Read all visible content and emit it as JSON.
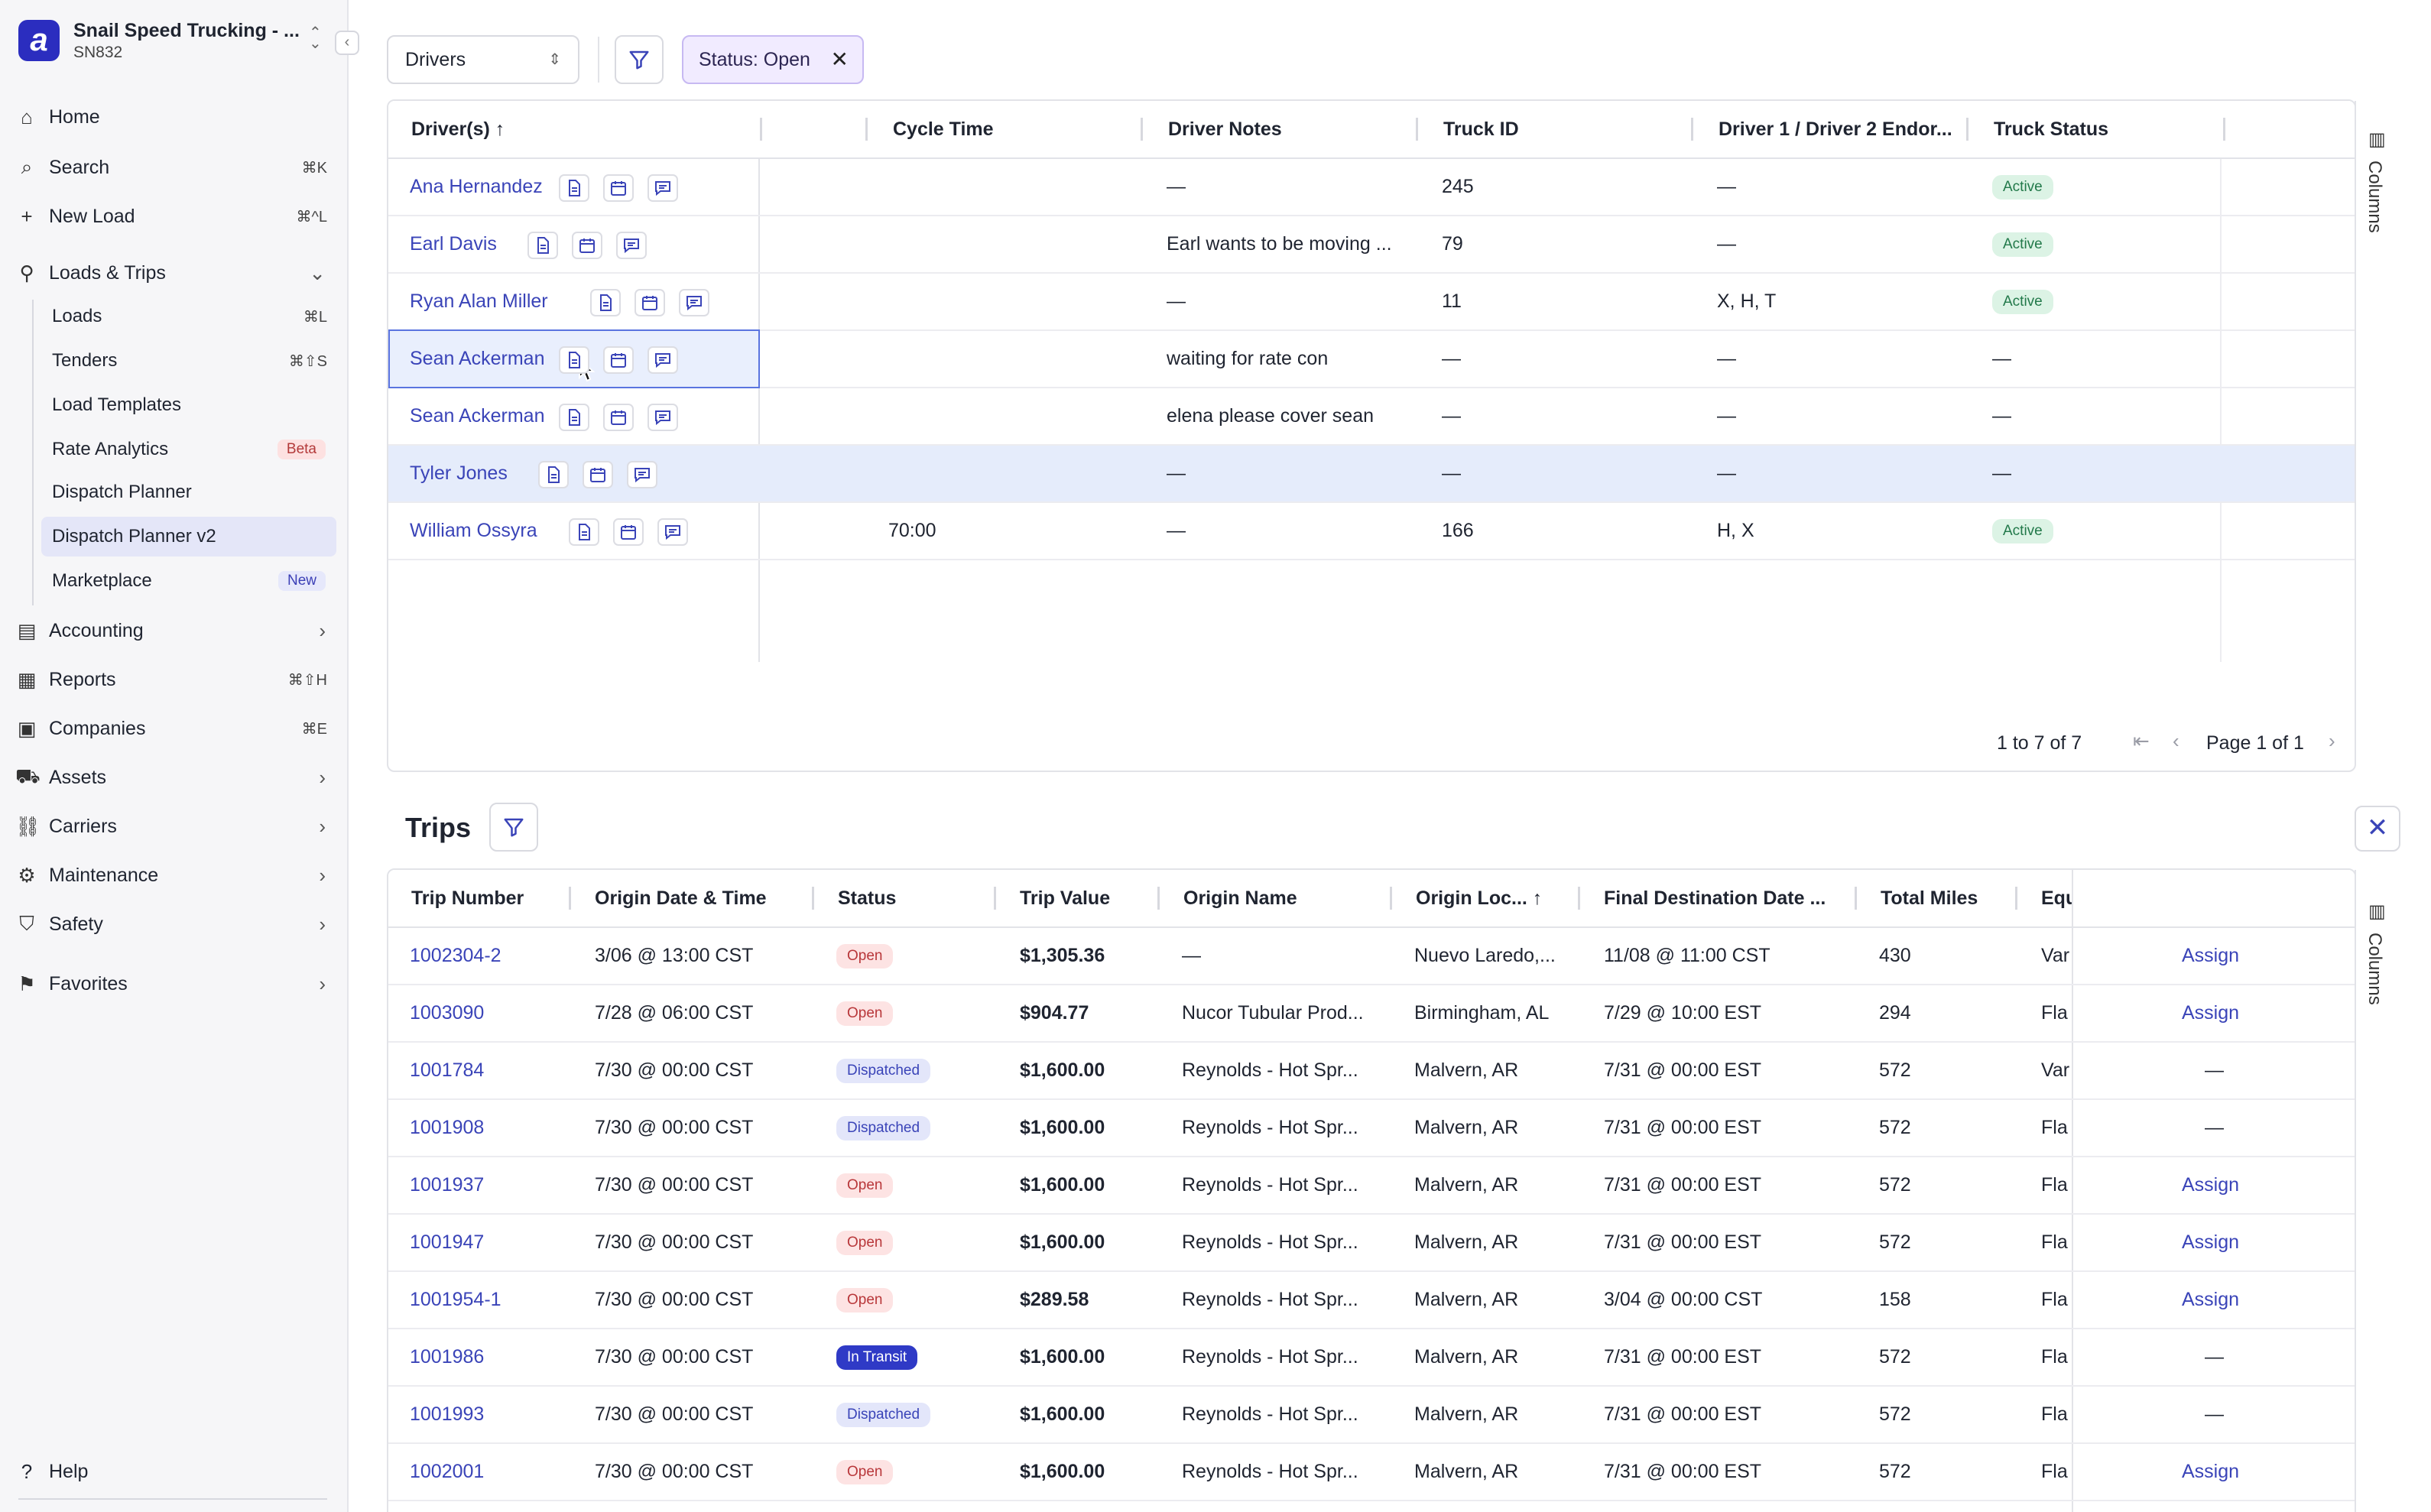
{
  "sidebar": {
    "org_name": "Snail Speed Trucking - ...",
    "org_code": "SN832",
    "logo_letter": "a",
    "items": [
      {
        "label": "Home",
        "icon": "home-icon",
        "shortcut": ""
      },
      {
        "label": "Search",
        "icon": "search-icon",
        "shortcut": "⌘K"
      },
      {
        "label": "New Load",
        "icon": "plus-icon",
        "shortcut": "⌘^L"
      },
      {
        "label": "Loads & Trips",
        "icon": "route-icon",
        "shortcut": ""
      },
      {
        "label": "Accounting",
        "icon": "accounting-icon",
        "shortcut": ""
      },
      {
        "label": "Reports",
        "icon": "reports-icon",
        "shortcut": "⌘⇧H"
      },
      {
        "label": "Companies",
        "icon": "companies-icon",
        "shortcut": "⌘E"
      },
      {
        "label": "Assets",
        "icon": "assets-icon",
        "shortcut": ""
      },
      {
        "label": "Carriers",
        "icon": "carriers-icon",
        "shortcut": ""
      },
      {
        "label": "Maintenance",
        "icon": "maintenance-icon",
        "shortcut": ""
      },
      {
        "label": "Safety",
        "icon": "shield-icon",
        "shortcut": ""
      },
      {
        "label": "Favorites",
        "icon": "bookmark-icon",
        "shortcut": ""
      }
    ],
    "sub_items": [
      {
        "label": "Loads",
        "shortcut": "⌘L",
        "badge": ""
      },
      {
        "label": "Tenders",
        "shortcut": "⌘⇧S",
        "badge": ""
      },
      {
        "label": "Load Templates",
        "shortcut": "",
        "badge": ""
      },
      {
        "label": "Rate Analytics",
        "shortcut": "",
        "badge": "Beta"
      },
      {
        "label": "Dispatch Planner",
        "shortcut": "",
        "badge": ""
      },
      {
        "label": "Dispatch Planner v2",
        "shortcut": "",
        "badge": ""
      },
      {
        "label": "Marketplace",
        "shortcut": "",
        "badge": "New"
      }
    ],
    "help_label": "Help"
  },
  "toolbar": {
    "view_select": "Drivers",
    "status_chip": "Status: Open"
  },
  "drivers": {
    "columns": [
      "Driver(s)",
      "Cycle Time",
      "Driver Notes",
      "Truck ID",
      "Driver 1 / Driver 2 Endor...",
      "Truck Status"
    ],
    "rows": [
      {
        "name": "Ana Hernandez",
        "cycle": "",
        "notes": "—",
        "truck": "245",
        "endorse": "—",
        "status": "Active"
      },
      {
        "name": "Earl Davis",
        "cycle": "",
        "notes": "Earl wants to be moving ...",
        "truck": "79",
        "endorse": "—",
        "status": "Active"
      },
      {
        "name": "Ryan Alan Miller",
        "cycle": "",
        "notes": "—",
        "truck": "11",
        "endorse": "X, H, T",
        "status": "Active"
      },
      {
        "name": "Sean Ackerman",
        "cycle": "",
        "notes": "waiting for rate con",
        "truck": "—",
        "endorse": "—",
        "status": "—"
      },
      {
        "name": "Sean Ackerman",
        "cycle": "",
        "notes": "elena please cover sean",
        "truck": "—",
        "endorse": "—",
        "status": "—"
      },
      {
        "name": "Tyler Jones",
        "cycle": "",
        "notes": "—",
        "truck": "—",
        "endorse": "—",
        "status": "—"
      },
      {
        "name": "William Ossyra",
        "cycle": "70:00",
        "notes": "—",
        "truck": "166",
        "endorse": "H, X",
        "status": "Active"
      }
    ],
    "range": "1 to 7 of 7",
    "page": "Page 1 of 1",
    "rail_label": "Columns"
  },
  "trips": {
    "title": "Trips",
    "columns": [
      "Trip Number",
      "Origin Date & Time",
      "Status",
      "Trip Value",
      "Origin Name",
      "Origin Loc...",
      "Final Destination Date ...",
      "Total Miles",
      "Equ"
    ],
    "rows": [
      {
        "num": "1002304-2",
        "origin_dt": "3/06 @ 13:00 CST",
        "status": "Open",
        "value": "$1,305.36",
        "origin_name": "—",
        "origin_loc": "Nuevo Laredo,...",
        "final": "11/08 @ 11:00 CST",
        "miles": "430",
        "equ": "Var",
        "action": "Assign"
      },
      {
        "num": "1003090",
        "origin_dt": "7/28 @ 06:00 CST",
        "status": "Open",
        "value": "$904.77",
        "origin_name": "Nucor Tubular Prod...",
        "origin_loc": "Birmingham, AL",
        "final": "7/29 @ 10:00 EST",
        "miles": "294",
        "equ": "Fla",
        "action": "Assign"
      },
      {
        "num": "1001784",
        "origin_dt": "7/30 @ 00:00 CST",
        "status": "Dispatched",
        "value": "$1,600.00",
        "origin_name": "Reynolds - Hot Spr...",
        "origin_loc": "Malvern, AR",
        "final": "7/31 @ 00:00 EST",
        "miles": "572",
        "equ": "Var",
        "action": "—"
      },
      {
        "num": "1001908",
        "origin_dt": "7/30 @ 00:00 CST",
        "status": "Dispatched",
        "value": "$1,600.00",
        "origin_name": "Reynolds - Hot Spr...",
        "origin_loc": "Malvern, AR",
        "final": "7/31 @ 00:00 EST",
        "miles": "572",
        "equ": "Fla",
        "action": "—"
      },
      {
        "num": "1001937",
        "origin_dt": "7/30 @ 00:00 CST",
        "status": "Open",
        "value": "$1,600.00",
        "origin_name": "Reynolds - Hot Spr...",
        "origin_loc": "Malvern, AR",
        "final": "7/31 @ 00:00 EST",
        "miles": "572",
        "equ": "Fla",
        "action": "Assign"
      },
      {
        "num": "1001947",
        "origin_dt": "7/30 @ 00:00 CST",
        "status": "Open",
        "value": "$1,600.00",
        "origin_name": "Reynolds - Hot Spr...",
        "origin_loc": "Malvern, AR",
        "final": "7/31 @ 00:00 EST",
        "miles": "572",
        "equ": "Fla",
        "action": "Assign"
      },
      {
        "num": "1001954-1",
        "origin_dt": "7/30 @ 00:00 CST",
        "status": "Open",
        "value": "$289.58",
        "origin_name": "Reynolds - Hot Spr...",
        "origin_loc": "Malvern, AR",
        "final": "3/04 @ 00:00 CST",
        "miles": "158",
        "equ": "Fla",
        "action": "Assign"
      },
      {
        "num": "1001986",
        "origin_dt": "7/30 @ 00:00 CST",
        "status": "In Transit",
        "value": "$1,600.00",
        "origin_name": "Reynolds - Hot Spr...",
        "origin_loc": "Malvern, AR",
        "final": "7/31 @ 00:00 EST",
        "miles": "572",
        "equ": "Fla",
        "action": "—"
      },
      {
        "num": "1001993",
        "origin_dt": "7/30 @ 00:00 CST",
        "status": "Dispatched",
        "value": "$1,600.00",
        "origin_name": "Reynolds - Hot Spr...",
        "origin_loc": "Malvern, AR",
        "final": "7/31 @ 00:00 EST",
        "miles": "572",
        "equ": "Fla",
        "action": "—"
      },
      {
        "num": "1002001",
        "origin_dt": "7/30 @ 00:00 CST",
        "status": "Open",
        "value": "$1,600.00",
        "origin_name": "Reynolds - Hot Spr...",
        "origin_loc": "Malvern, AR",
        "final": "7/31 @ 00:00 EST",
        "miles": "572",
        "equ": "Fla",
        "action": "Assign"
      }
    ],
    "rail_label": "Columns"
  },
  "colors": {
    "accent": "#3a44b8",
    "brand": "#2b2dbf",
    "selected_row": "#e5ecfb",
    "chip_bg": "#f1ebff"
  }
}
